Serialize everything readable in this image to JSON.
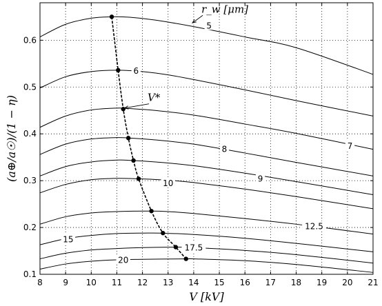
{
  "chart_data": {
    "type": "line",
    "xlabel": "V [kV]",
    "ylabel": "(a⊕/a☉)/(1 − η)",
    "xlim": [
      8,
      21
    ],
    "ylim": [
      0.1,
      0.68
    ],
    "xticks": [
      8,
      9,
      10,
      11,
      12,
      13,
      14,
      15,
      16,
      17,
      18,
      19,
      20,
      21
    ],
    "yticks": [
      0.1,
      0.2,
      0.3,
      0.4,
      0.5,
      0.6
    ],
    "ytick_labels": [
      "0.1",
      "0.2",
      "0.3",
      "0.4",
      "0.5",
      "0.6"
    ],
    "grid": true,
    "legend": "none",
    "series": [
      {
        "name": "5",
        "x": [
          8,
          9,
          10,
          10.8,
          11.5,
          12.5,
          14,
          16,
          18,
          21
        ],
        "y": [
          0.607,
          0.634,
          0.647,
          0.65,
          0.649,
          0.643,
          0.629,
          0.607,
          0.584,
          0.527
        ]
      },
      {
        "name": "6",
        "x": [
          8,
          9,
          10,
          11,
          12,
          13,
          14,
          16,
          18,
          21
        ],
        "y": [
          0.498,
          0.522,
          0.533,
          0.536,
          0.533,
          0.526,
          0.516,
          0.494,
          0.471,
          0.438
        ]
      },
      {
        "name": "7",
        "x": [
          8,
          9,
          10,
          11,
          11.5,
          12.5,
          14,
          16,
          18,
          21
        ],
        "y": [
          0.414,
          0.438,
          0.451,
          0.455,
          0.454,
          0.45,
          0.44,
          0.421,
          0.401,
          0.367
        ]
      },
      {
        "name": "8",
        "x": [
          8,
          9,
          10,
          11,
          11.5,
          12.5,
          14,
          16,
          18,
          21
        ],
        "y": [
          0.356,
          0.378,
          0.389,
          0.392,
          0.391,
          0.387,
          0.378,
          0.359,
          0.339,
          0.31
        ]
      },
      {
        "name": "9",
        "x": [
          8,
          9,
          10,
          11,
          11.6,
          12.5,
          14,
          16,
          18,
          21
        ],
        "y": [
          0.31,
          0.33,
          0.34,
          0.344,
          0.343,
          0.34,
          0.332,
          0.316,
          0.298,
          0.27
        ]
      },
      {
        "name": "10",
        "x": [
          8,
          9,
          10,
          11,
          11.8,
          13,
          14,
          16,
          18,
          21
        ],
        "y": [
          0.274,
          0.292,
          0.302,
          0.305,
          0.304,
          0.301,
          0.296,
          0.282,
          0.266,
          0.24
        ]
      },
      {
        "name": "12.5",
        "x": [
          8,
          9,
          10,
          11,
          12.3,
          13,
          14,
          16,
          18,
          21
        ],
        "y": [
          0.207,
          0.223,
          0.231,
          0.234,
          0.235,
          0.234,
          0.23,
          0.219,
          0.207,
          0.186
        ]
      },
      {
        "name": "15",
        "x": [
          8,
          9,
          10,
          11,
          12,
          12.7,
          14,
          16,
          18,
          21
        ],
        "y": [
          0.163,
          0.176,
          0.183,
          0.187,
          0.188,
          0.188,
          0.185,
          0.177,
          0.166,
          0.148
        ]
      },
      {
        "name": "17.5",
        "x": [
          8,
          9,
          10,
          11,
          12,
          13.3,
          14,
          16,
          18,
          21
        ],
        "y": [
          0.133,
          0.145,
          0.152,
          0.155,
          0.157,
          0.158,
          0.157,
          0.151,
          0.142,
          0.124
        ]
      },
      {
        "name": "20",
        "x": [
          8,
          9,
          10,
          11,
          12,
          13.7,
          14,
          16,
          18,
          21
        ],
        "y": [
          0.111,
          0.122,
          0.128,
          0.131,
          0.132,
          0.133,
          0.133,
          0.129,
          0.121,
          0.104
        ]
      }
    ],
    "optimum": {
      "name": "V*",
      "x": [
        10.8,
        11.05,
        11.25,
        11.45,
        11.65,
        11.85,
        12.35,
        12.8,
        13.3,
        13.7
      ],
      "y": [
        0.65,
        0.536,
        0.453,
        0.391,
        0.343,
        0.304,
        0.235,
        0.188,
        0.158,
        0.133
      ]
    },
    "curve_labels": [
      {
        "text": "5",
        "x": 14.6,
        "y": 0.631
      },
      {
        "text": "6",
        "x": 11.75,
        "y": 0.534
      },
      {
        "text": "7",
        "x": 20.1,
        "y": 0.374
      },
      {
        "text": "8",
        "x": 15.2,
        "y": 0.367
      },
      {
        "text": "9",
        "x": 16.6,
        "y": 0.304
      },
      {
        "text": "10",
        "x": 13.0,
        "y": 0.294
      },
      {
        "text": "12.5",
        "x": 18.7,
        "y": 0.202
      },
      {
        "text": "15",
        "x": 9.1,
        "y": 0.174
      },
      {
        "text": "17.5",
        "x": 14.0,
        "y": 0.157
      },
      {
        "text": "20",
        "x": 11.25,
        "y": 0.13
      }
    ],
    "annotations": [
      {
        "text": "r_w [μm]",
        "x": 14.3,
        "y": 0.659,
        "arrow_to": [
          13.95,
          0.637
        ]
      },
      {
        "text": "V*",
        "x": 12.2,
        "y": 0.47,
        "arrow_to": [
          11.3,
          0.455
        ]
      }
    ]
  }
}
